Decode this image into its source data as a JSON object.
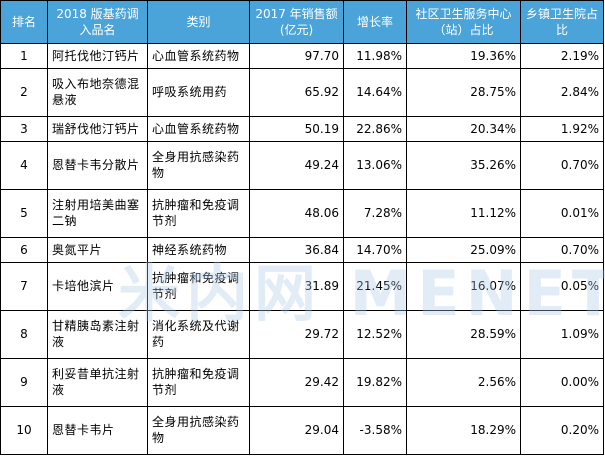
{
  "headers": [
    "排名",
    "2018 版基药调入品名",
    "类别",
    "2017 年销售额(亿元)",
    "增长率",
    "社区卫生服务中心（站）占比",
    "乡镇卫生院占比"
  ],
  "rows": [
    {
      "rank": "1",
      "name": "阿托伐他汀钙片",
      "category": "心血管系统药物",
      "sales": "97.70",
      "growth": "11.98%",
      "community": "19.36%",
      "township": "2.19%"
    },
    {
      "rank": "2",
      "name": "吸入布地奈德混悬液",
      "category": "呼吸系统用药",
      "sales": "65.92",
      "growth": "14.64%",
      "community": "28.75%",
      "township": "2.84%"
    },
    {
      "rank": "3",
      "name": "瑞舒伐他汀钙片",
      "category": "心血管系统药物",
      "sales": "50.19",
      "growth": "22.86%",
      "community": "20.34%",
      "township": "1.92%"
    },
    {
      "rank": "4",
      "name": "恩替卡韦分散片",
      "category": "全身用抗感染药物",
      "sales": "49.24",
      "growth": "13.06%",
      "community": "35.26%",
      "township": "0.70%"
    },
    {
      "rank": "5",
      "name": "注射用培美曲塞二钠",
      "category": "抗肿瘤和免疫调节剂",
      "sales": "48.06",
      "growth": "7.28%",
      "community": "11.12%",
      "township": "0.01%"
    },
    {
      "rank": "6",
      "name": "奥氮平片",
      "category": "神经系统药物",
      "sales": "36.84",
      "growth": "14.70%",
      "community": "25.09%",
      "township": "0.70%"
    },
    {
      "rank": "7",
      "name": "卡培他滨片",
      "category": "抗肿瘤和免疫调节剂",
      "sales": "31.89",
      "growth": "21.45%",
      "community": "16.07%",
      "township": "0.05%"
    },
    {
      "rank": "8",
      "name": "甘精胰岛素注射液",
      "category": "消化系统及代谢药",
      "sales": "29.72",
      "growth": "12.52%",
      "community": "28.59%",
      "township": "1.09%"
    },
    {
      "rank": "9",
      "name": "利妥昔单抗注射液",
      "category": "抗肿瘤和免疫调节剂",
      "sales": "29.42",
      "growth": "19.82%",
      "community": "2.56%",
      "township": "0.00%"
    },
    {
      "rank": "10",
      "name": "恩替卡韦片",
      "category": "全身用抗感染药物",
      "sales": "29.04",
      "growth": "-3.58%",
      "community": "18.29%",
      "township": "0.20%"
    }
  ],
  "watermark": "米内网 MENET",
  "colors": {
    "header_bg": "#4aa3d9",
    "header_text": "#ffffff",
    "border": "#000000"
  }
}
